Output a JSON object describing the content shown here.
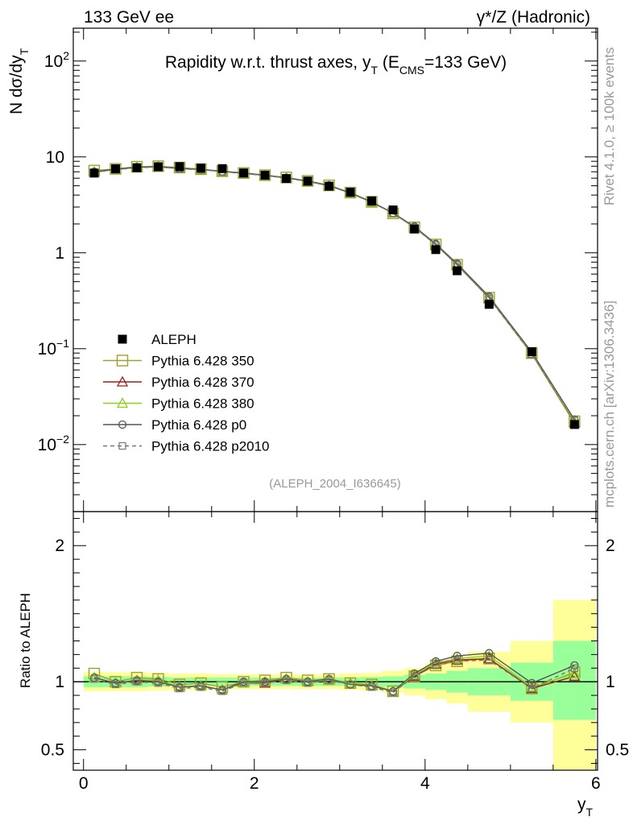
{
  "header": {
    "left": "133 GeV ee",
    "right": "γ*/Z (Hadronic)"
  },
  "side_labels": {
    "top": "Rivet 4.1.0, ≥ 100k events",
    "bottom": "mcplots.cern.ch [arXiv:1306.3436]"
  },
  "colors": {
    "data": "#000000",
    "p350": "#a0a030",
    "p370": "#a01d1d",
    "p380": "#8ed01a",
    "p0": "#555555",
    "p2010": "#777777",
    "band_inner": "#99ff99",
    "band_outer": "#ffff99"
  },
  "chart_data": [
    {
      "type": "line",
      "title": "Rapidity w.r.t. thrust axes, y_T (E_CMS=133 GeV)",
      "title_parts": {
        "main": "Rapidity w.r.t. thrust axes, y",
        "sub1": "T",
        "mid": " (E",
        "sub2": "CMS",
        "end": "=133 GeV)"
      },
      "ylabel": "N  dσ/dy_T",
      "ylabel_parts": {
        "main": "N  dσ/dy",
        "sub": "T"
      },
      "xlabel": "y_T",
      "yscale": "log",
      "ylim": [
        0.002,
        220
      ],
      "xlim": [
        -0.12,
        6.02
      ],
      "y_ticks": [
        {
          "value": 100,
          "base": "10",
          "exp": "2"
        },
        {
          "value": 10,
          "base": "10",
          "exp": ""
        },
        {
          "value": 1,
          "base": "1",
          "exp": ""
        },
        {
          "value": 0.1,
          "base": "10",
          "exp": "−1"
        },
        {
          "value": 0.01,
          "base": "10",
          "exp": "−2"
        }
      ],
      "annotation": "(ALEPH_2004_I636645)",
      "x": [
        0.125,
        0.375,
        0.625,
        0.875,
        1.125,
        1.375,
        1.625,
        1.875,
        2.125,
        2.375,
        2.625,
        2.875,
        3.125,
        3.375,
        3.625,
        3.875,
        4.125,
        4.375,
        4.75,
        5.25,
        5.75
      ],
      "series": [
        {
          "name": "ALEPH",
          "key": "data",
          "marker": "filled-square",
          "values": [
            6.78,
            7.52,
            7.72,
            7.9,
            7.92,
            7.65,
            7.55,
            6.8,
            6.45,
            5.95,
            5.6,
            4.95,
            4.28,
            3.48,
            2.8,
            1.77,
            1.08,
            0.65,
            0.29,
            0.093,
            0.0162
          ]
        },
        {
          "name": "Pythia 6.428 350",
          "key": "p350",
          "marker": "open-square-large",
          "line": "solid",
          "values": [
            7.2,
            7.5,
            7.9,
            8.0,
            7.75,
            7.45,
            7.1,
            6.8,
            6.45,
            6.1,
            5.62,
            5.05,
            4.25,
            3.4,
            2.58,
            1.84,
            1.22,
            0.75,
            0.34,
            0.09,
            0.0175
          ]
        },
        {
          "name": "Pythia 6.428 370",
          "key": "p370",
          "marker": "open-triangle",
          "line": "solid",
          "values": [
            6.95,
            7.4,
            7.8,
            7.95,
            7.6,
            7.4,
            7.05,
            6.75,
            6.4,
            6.05,
            5.58,
            5.0,
            4.22,
            3.38,
            2.6,
            1.85,
            1.22,
            0.75,
            0.34,
            0.088,
            0.0168
          ]
        },
        {
          "name": "Pythia 6.428 380",
          "key": "p380",
          "marker": "open-triangle",
          "line": "solid",
          "values": [
            7.0,
            7.42,
            7.82,
            7.96,
            7.62,
            7.42,
            7.06,
            6.76,
            6.42,
            6.06,
            5.6,
            5.02,
            4.22,
            3.38,
            2.6,
            1.85,
            1.23,
            0.76,
            0.345,
            0.089,
            0.0172
          ]
        },
        {
          "name": "Pythia 6.428 p0",
          "key": "p0",
          "marker": "open-circle",
          "line": "solid",
          "values": [
            7.0,
            7.45,
            7.8,
            7.9,
            7.6,
            7.4,
            7.05,
            6.8,
            6.45,
            6.05,
            5.6,
            5.05,
            4.2,
            3.38,
            2.6,
            1.88,
            1.24,
            0.77,
            0.35,
            0.092,
            0.0182
          ]
        },
        {
          "name": "Pythia 6.428 p2010",
          "key": "p2010",
          "marker": "open-square-small",
          "line": "dashed",
          "values": [
            6.9,
            7.35,
            7.7,
            7.85,
            7.5,
            7.35,
            7.0,
            6.7,
            6.4,
            6.0,
            5.55,
            4.98,
            4.18,
            3.35,
            2.58,
            1.84,
            1.21,
            0.75,
            0.335,
            0.088,
            0.0178
          ]
        }
      ]
    },
    {
      "type": "line",
      "title": "",
      "ylabel": "Ratio to ALEPH",
      "xlabel": "y_T",
      "xlabel_parts": {
        "main": "y",
        "sub": "T"
      },
      "ylim": [
        0.35,
        2.25
      ],
      "xlim": [
        -0.12,
        6.02
      ],
      "y_ticks": [
        {
          "value": 0.5,
          "label": "0.5"
        },
        {
          "value": 1,
          "label": "1"
        },
        {
          "value": 2,
          "label": "2"
        }
      ],
      "x_ticks": [
        {
          "value": 0,
          "label": "0"
        },
        {
          "value": 2,
          "label": "2"
        },
        {
          "value": 4,
          "label": "4"
        },
        {
          "value": 6,
          "label": "6"
        }
      ],
      "reference_line": 1,
      "bins": [
        {
          "lo": 0.0,
          "hi": 0.25,
          "inner": [
            0.96,
            1.04
          ],
          "outer": [
            0.93,
            1.07
          ]
        },
        {
          "lo": 0.25,
          "hi": 0.5,
          "inner": [
            0.96,
            1.04
          ],
          "outer": [
            0.93,
            1.07
          ]
        },
        {
          "lo": 0.5,
          "hi": 0.75,
          "inner": [
            0.96,
            1.04
          ],
          "outer": [
            0.93,
            1.07
          ]
        },
        {
          "lo": 0.75,
          "hi": 1.0,
          "inner": [
            0.965,
            1.035
          ],
          "outer": [
            0.935,
            1.065
          ]
        },
        {
          "lo": 1.0,
          "hi": 1.25,
          "inner": [
            0.97,
            1.03
          ],
          "outer": [
            0.94,
            1.06
          ]
        },
        {
          "lo": 1.25,
          "hi": 1.5,
          "inner": [
            0.97,
            1.03
          ],
          "outer": [
            0.94,
            1.06
          ]
        },
        {
          "lo": 1.5,
          "hi": 1.75,
          "inner": [
            0.97,
            1.03
          ],
          "outer": [
            0.945,
            1.055
          ]
        },
        {
          "lo": 1.75,
          "hi": 2.0,
          "inner": [
            0.97,
            1.03
          ],
          "outer": [
            0.945,
            1.055
          ]
        },
        {
          "lo": 2.0,
          "hi": 2.25,
          "inner": [
            0.97,
            1.03
          ],
          "outer": [
            0.945,
            1.055
          ]
        },
        {
          "lo": 2.25,
          "hi": 2.5,
          "inner": [
            0.97,
            1.03
          ],
          "outer": [
            0.945,
            1.055
          ]
        },
        {
          "lo": 2.5,
          "hi": 2.75,
          "inner": [
            0.97,
            1.03
          ],
          "outer": [
            0.945,
            1.055
          ]
        },
        {
          "lo": 2.75,
          "hi": 3.0,
          "inner": [
            0.97,
            1.03
          ],
          "outer": [
            0.945,
            1.055
          ]
        },
        {
          "lo": 3.0,
          "hi": 3.25,
          "inner": [
            0.97,
            1.03
          ],
          "outer": [
            0.94,
            1.06
          ]
        },
        {
          "lo": 3.25,
          "hi": 3.5,
          "inner": [
            0.965,
            1.035
          ],
          "outer": [
            0.935,
            1.065
          ]
        },
        {
          "lo": 3.5,
          "hi": 3.75,
          "inner": [
            0.96,
            1.04
          ],
          "outer": [
            0.92,
            1.08
          ]
        },
        {
          "lo": 3.75,
          "hi": 4.0,
          "inner": [
            0.95,
            1.05
          ],
          "outer": [
            0.9,
            1.1
          ]
        },
        {
          "lo": 4.0,
          "hi": 4.25,
          "inner": [
            0.94,
            1.06
          ],
          "outer": [
            0.87,
            1.13
          ]
        },
        {
          "lo": 4.25,
          "hi": 4.5,
          "inner": [
            0.92,
            1.08
          ],
          "outer": [
            0.84,
            1.16
          ]
        },
        {
          "lo": 4.5,
          "hi": 5.0,
          "inner": [
            0.9,
            1.1
          ],
          "outer": [
            0.78,
            1.22
          ]
        },
        {
          "lo": 5.0,
          "hi": 5.5,
          "inner": [
            0.86,
            1.14
          ],
          "outer": [
            0.7,
            1.3
          ]
        },
        {
          "lo": 5.5,
          "hi": 6.0,
          "inner": [
            0.72,
            1.3
          ],
          "outer": [
            0.35,
            1.6
          ]
        }
      ],
      "x": [
        0.125,
        0.375,
        0.625,
        0.875,
        1.125,
        1.375,
        1.625,
        1.875,
        2.125,
        2.375,
        2.625,
        2.875,
        3.125,
        3.375,
        3.625,
        3.875,
        4.125,
        4.375,
        4.75,
        5.25,
        5.75
      ],
      "series": [
        {
          "name": "Pythia 6.428 350",
          "key": "p350",
          "marker": "open-square-large",
          "line": "solid",
          "values": [
            1.06,
            1.0,
            1.03,
            1.02,
            0.98,
            0.99,
            0.96,
            1.0,
            1.01,
            1.03,
            1.01,
            1.02,
            0.99,
            0.98,
            0.93,
            1.04,
            1.12,
            1.15,
            1.17,
            0.95,
            1.07
          ]
        },
        {
          "name": "Pythia 6.428 370",
          "key": "p370",
          "marker": "open-triangle",
          "line": "solid",
          "values": [
            1.03,
            0.99,
            1.01,
            1.01,
            0.96,
            0.97,
            0.94,
            0.99,
            0.99,
            1.02,
            1.0,
            1.01,
            0.99,
            0.97,
            0.93,
            1.04,
            1.13,
            1.16,
            1.17,
            0.95,
            1.04
          ]
        },
        {
          "name": "Pythia 6.428 380",
          "key": "p380",
          "marker": "open-triangle",
          "line": "solid",
          "values": [
            1.03,
            0.99,
            1.01,
            1.01,
            0.96,
            0.97,
            0.94,
            0.99,
            1.0,
            1.02,
            1.0,
            1.01,
            0.99,
            0.97,
            0.93,
            1.05,
            1.14,
            1.17,
            1.19,
            0.96,
            1.06
          ]
        },
        {
          "name": "Pythia 6.428 p0",
          "key": "p0",
          "marker": "open-circle",
          "line": "solid",
          "values": [
            1.03,
            0.99,
            1.01,
            1.0,
            0.96,
            0.97,
            0.94,
            1.0,
            1.0,
            1.02,
            1.0,
            1.02,
            0.98,
            0.97,
            0.93,
            1.06,
            1.15,
            1.19,
            1.21,
            0.99,
            1.12
          ]
        },
        {
          "name": "Pythia 6.428 p2010",
          "key": "p2010",
          "marker": "open-square-small",
          "line": "dashed",
          "values": [
            1.02,
            0.98,
            1.0,
            0.99,
            0.95,
            0.96,
            0.93,
            0.99,
            0.99,
            1.01,
            0.99,
            1.01,
            0.98,
            0.96,
            0.92,
            1.04,
            1.12,
            1.15,
            1.16,
            0.95,
            1.1
          ]
        }
      ]
    }
  ]
}
